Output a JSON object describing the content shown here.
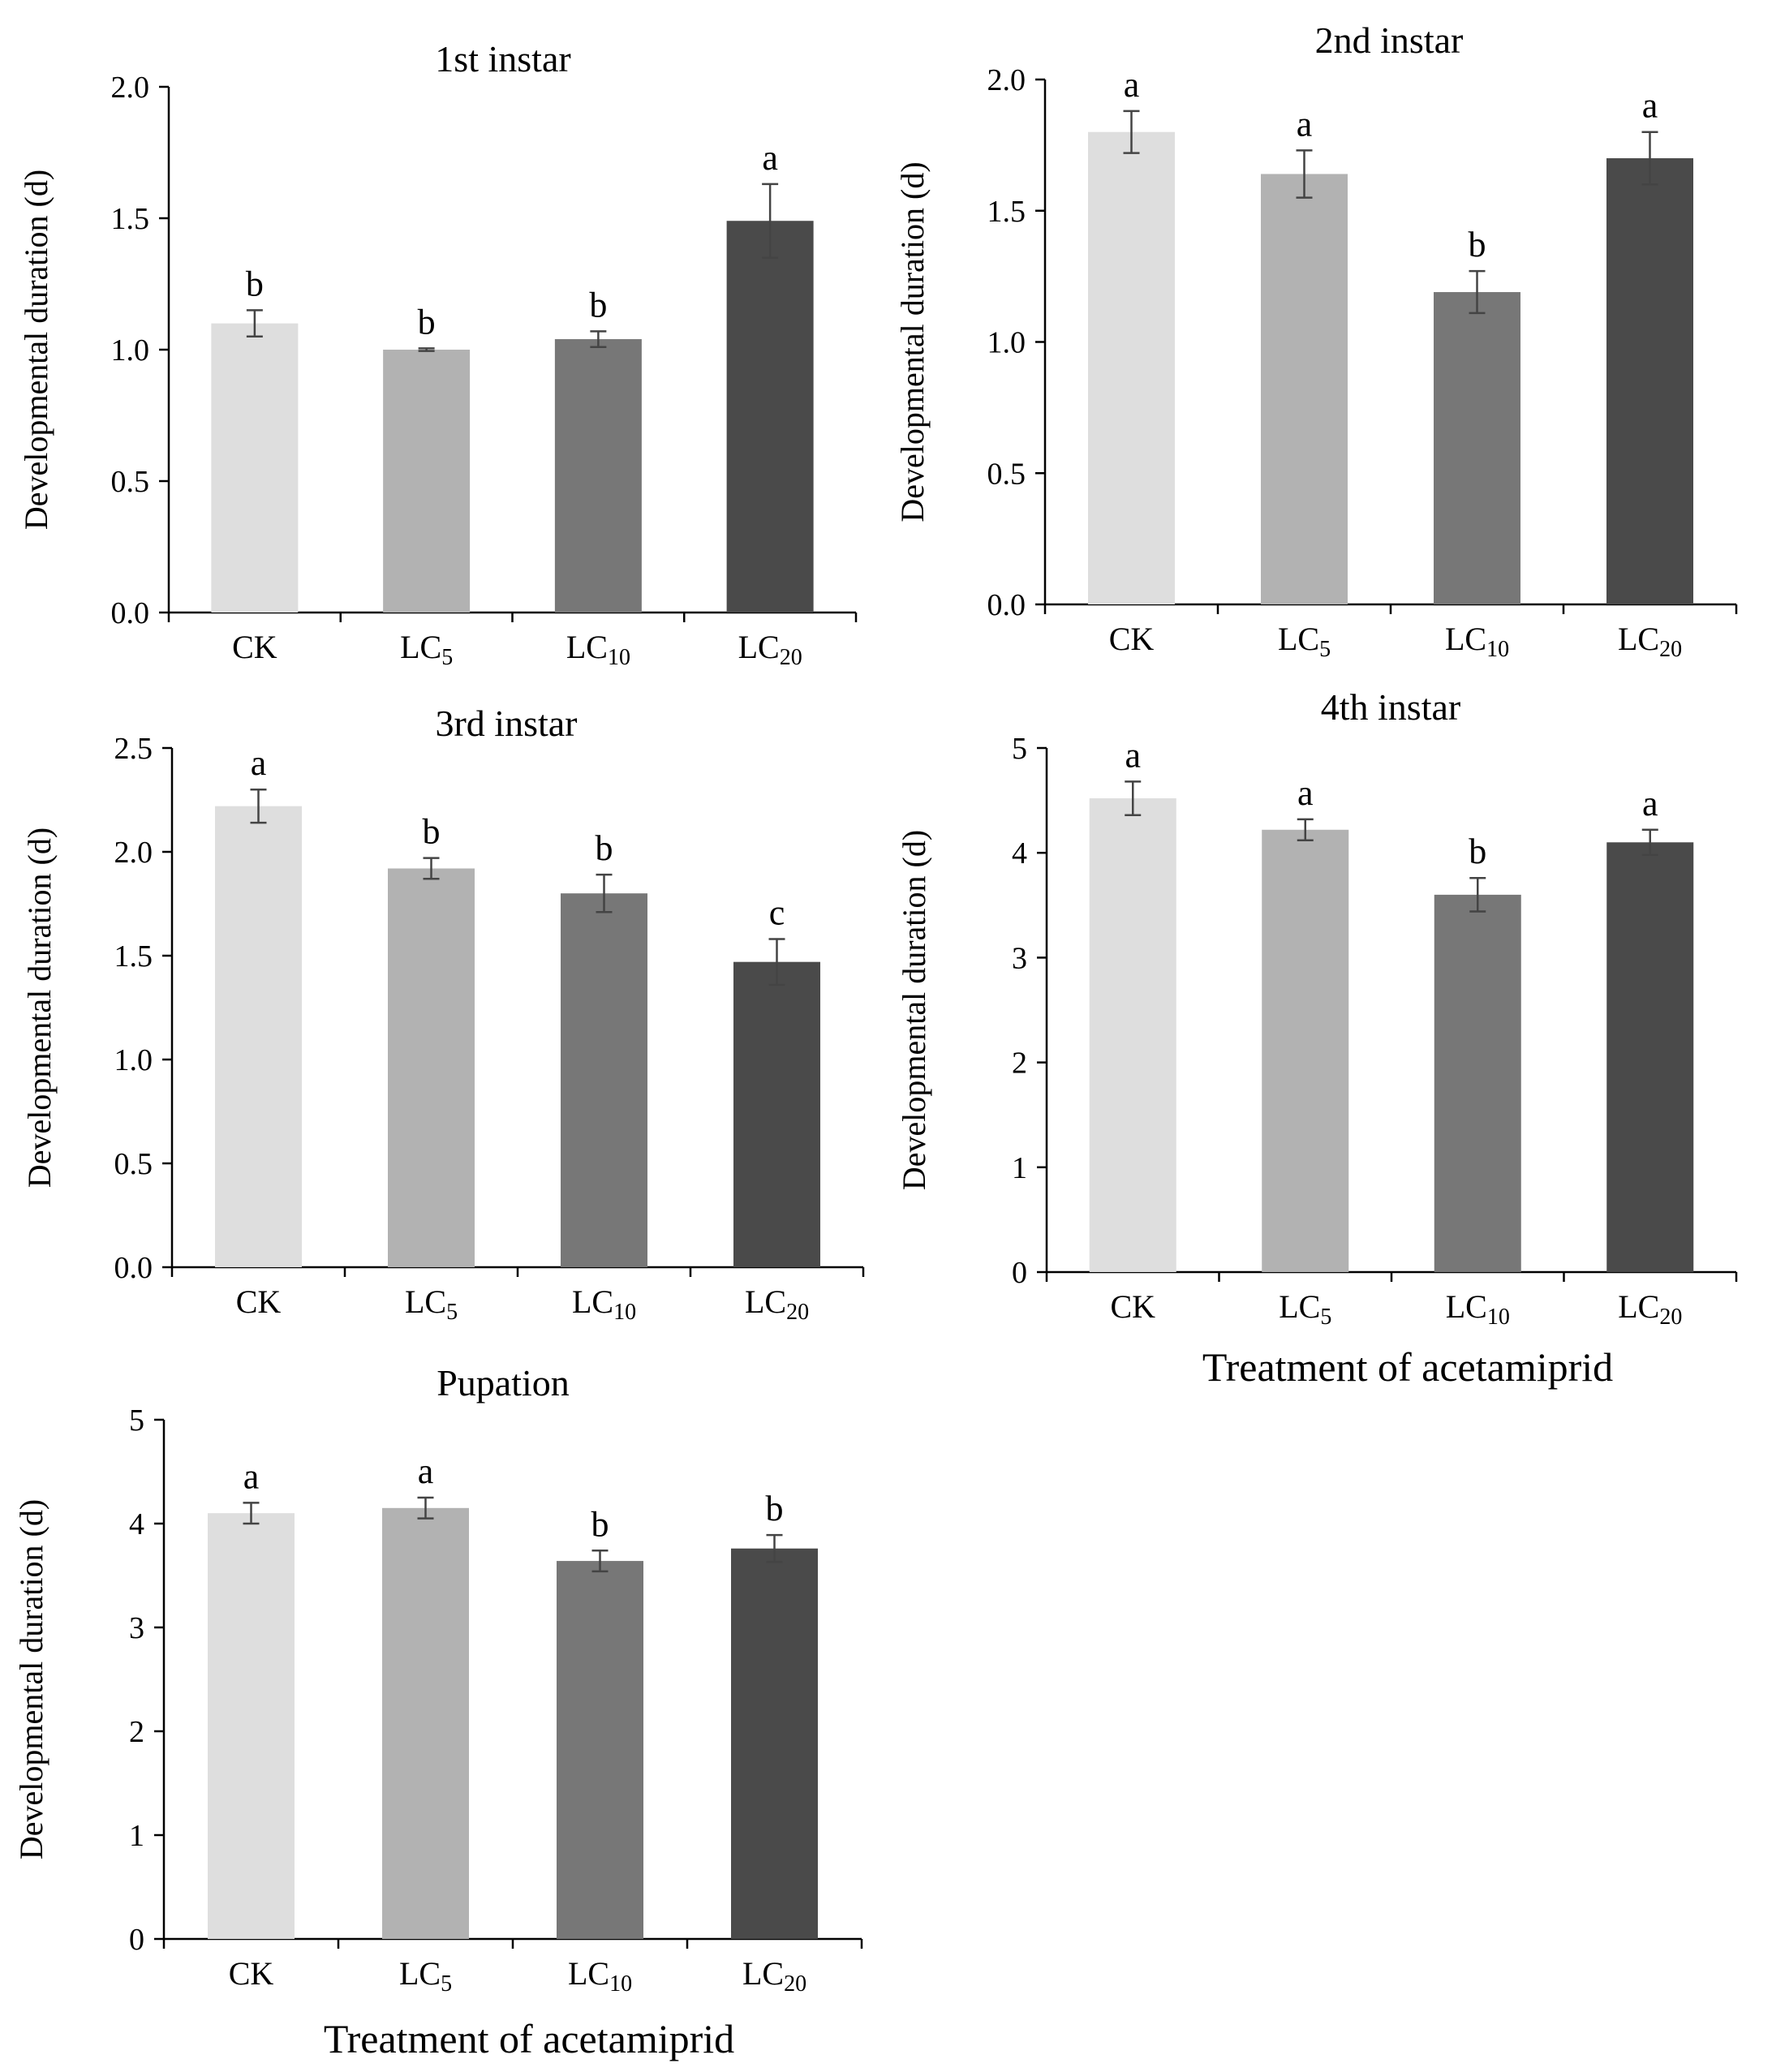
{
  "chart_data": [
    {
      "type": "bar",
      "title": "1st instar",
      "ylabel": "Developmental  duration (d)",
      "xlabel": "",
      "categories": [
        {
          "base": "LC",
          "sub": "",
          "full": "CK",
          "text": "CK"
        },
        {
          "base": "LC",
          "sub": "5",
          "full": "LC5"
        },
        {
          "base": "LC",
          "sub": "10",
          "full": "LC10"
        },
        {
          "base": "LC",
          "sub": "20",
          "full": "LC20"
        }
      ],
      "values": [
        1.1,
        1.0,
        1.04,
        1.49
      ],
      "errors": [
        0.05,
        0.005,
        0.03,
        0.14
      ],
      "letters": [
        "b",
        "b",
        "b",
        "a"
      ],
      "ylim": [
        0,
        2.0
      ],
      "yticks": [
        "0.0",
        "0.5",
        "1.0",
        "1.5",
        "2.0"
      ],
      "grid": false
    },
    {
      "type": "bar",
      "title": "2nd instar",
      "ylabel": "Developmental  duration (d)",
      "xlabel": "",
      "categories": [
        {
          "base": "LC",
          "sub": "",
          "full": "CK",
          "text": "CK"
        },
        {
          "base": "LC",
          "sub": "5",
          "full": "LC5"
        },
        {
          "base": "LC",
          "sub": "10",
          "full": "LC10"
        },
        {
          "base": "LC",
          "sub": "20",
          "full": "LC20"
        }
      ],
      "values": [
        1.8,
        1.64,
        1.19,
        1.7
      ],
      "errors": [
        0.08,
        0.09,
        0.08,
        0.1
      ],
      "letters": [
        "a",
        "a",
        "b",
        "a"
      ],
      "ylim": [
        0,
        2.0
      ],
      "yticks": [
        "0.0",
        "0.5",
        "1.0",
        "1.5",
        "2.0"
      ],
      "grid": false
    },
    {
      "type": "bar",
      "title": "3rd instar",
      "ylabel": "Developmental  duration (d)",
      "xlabel": "",
      "categories": [
        {
          "base": "LC",
          "sub": "",
          "full": "CK",
          "text": "CK"
        },
        {
          "base": "LC",
          "sub": "5",
          "full": "LC5"
        },
        {
          "base": "LC",
          "sub": "10",
          "full": "LC10"
        },
        {
          "base": "LC",
          "sub": "20",
          "full": "LC20"
        }
      ],
      "values": [
        2.22,
        1.92,
        1.8,
        1.47
      ],
      "errors": [
        0.08,
        0.05,
        0.09,
        0.11
      ],
      "letters": [
        "a",
        "b",
        "b",
        "c"
      ],
      "ylim": [
        0,
        2.5
      ],
      "yticks": [
        "0.0",
        "0.5",
        "1.0",
        "1.5",
        "2.0",
        "2.5"
      ],
      "grid": false
    },
    {
      "type": "bar",
      "title": "4th instar",
      "ylabel": "Developmental  duration (d)",
      "xlabel": "Treatment  of acetamiprid",
      "categories": [
        {
          "base": "LC",
          "sub": "",
          "full": "CK",
          "text": "CK"
        },
        {
          "base": "LC",
          "sub": "5",
          "full": "LC5"
        },
        {
          "base": "LC",
          "sub": "10",
          "full": "LC10"
        },
        {
          "base": "LC",
          "sub": "20",
          "full": "LC20"
        }
      ],
      "values": [
        4.52,
        4.22,
        3.6,
        4.1
      ],
      "errors": [
        0.16,
        0.1,
        0.16,
        0.12
      ],
      "letters": [
        "a",
        "a",
        "b",
        "a"
      ],
      "ylim": [
        0,
        5
      ],
      "yticks": [
        "0",
        "1",
        "2",
        "3",
        "4",
        "5"
      ],
      "grid": false
    },
    {
      "type": "bar",
      "title": "Pupation",
      "ylabel": "Developmental  duration (d)",
      "xlabel": "Treatment  of acetamiprid",
      "categories": [
        {
          "base": "LC",
          "sub": "",
          "full": "CK",
          "text": "CK"
        },
        {
          "base": "LC",
          "sub": "5",
          "full": "LC5"
        },
        {
          "base": "LC",
          "sub": "10",
          "full": "LC10"
        },
        {
          "base": "LC",
          "sub": "20",
          "full": "LC20"
        }
      ],
      "values": [
        4.1,
        4.15,
        3.64,
        3.76
      ],
      "errors": [
        0.1,
        0.1,
        0.1,
        0.13
      ],
      "letters": [
        "a",
        "a",
        "b",
        "b"
      ],
      "ylim": [
        0,
        5
      ],
      "yticks": [
        "0",
        "1",
        "2",
        "3",
        "4",
        "5"
      ],
      "grid": false
    }
  ],
  "colors": {
    "bars": [
      "#dedede",
      "#b2b2b2",
      "#777777",
      "#4a4a4a"
    ],
    "error_bar": "#444444",
    "axis": "#000000"
  }
}
